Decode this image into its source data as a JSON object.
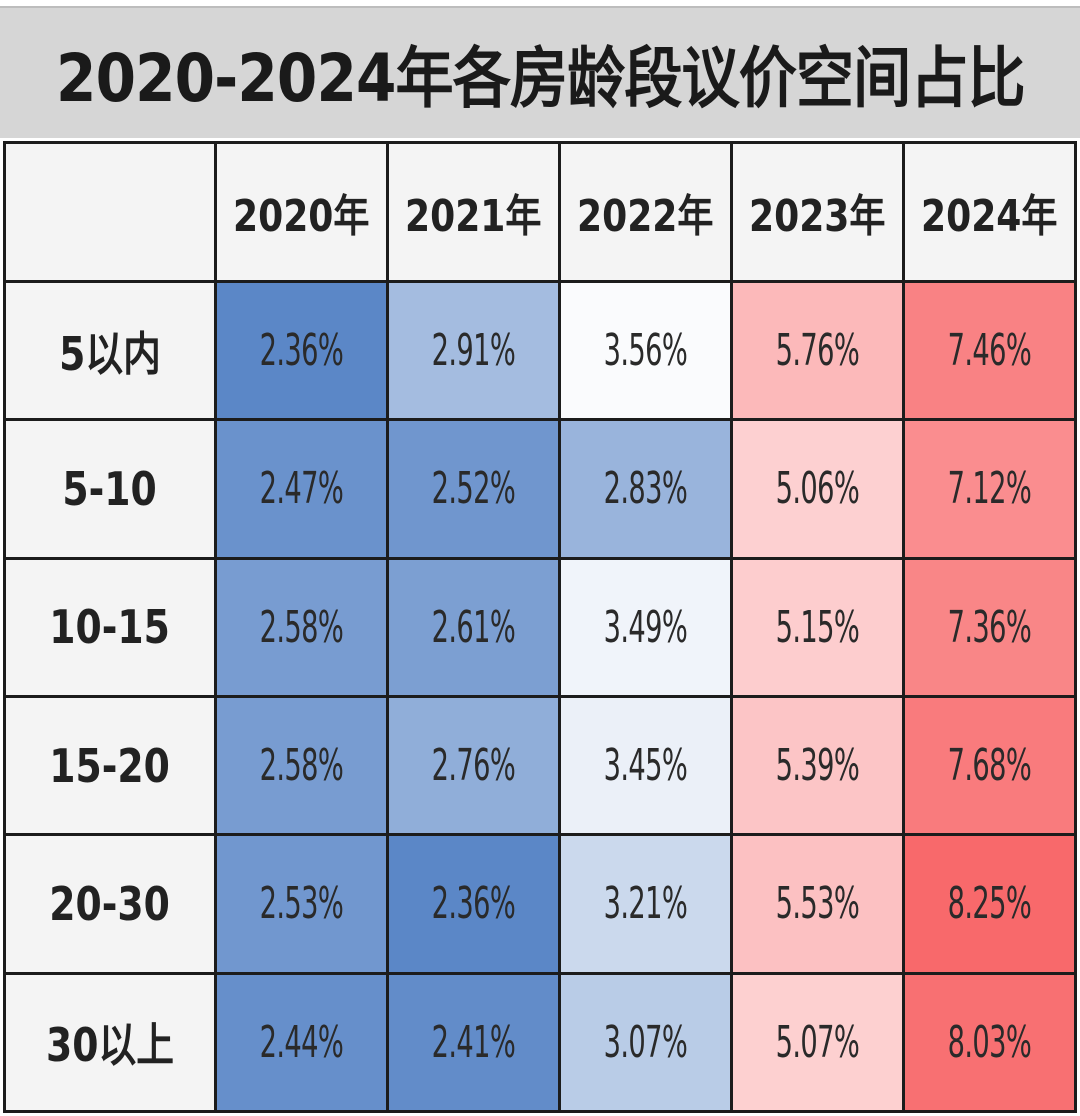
{
  "chart_data": {
    "type": "heatmap",
    "title": "2020-2024年各房龄段议价空间占比",
    "columns": [
      "2020年",
      "2021年",
      "2022年",
      "2023年",
      "2024年"
    ],
    "rows": [
      "5以内",
      "5-10",
      "10-15",
      "15-20",
      "20-30",
      "30以上"
    ],
    "values": [
      [
        2.36,
        2.91,
        3.56,
        5.76,
        7.46
      ],
      [
        2.47,
        2.52,
        2.83,
        5.06,
        7.12
      ],
      [
        2.58,
        2.61,
        3.49,
        5.15,
        7.36
      ],
      [
        2.58,
        2.76,
        3.45,
        5.39,
        7.68
      ],
      [
        2.53,
        2.36,
        3.21,
        5.53,
        8.25
      ],
      [
        2.44,
        2.41,
        3.07,
        5.07,
        8.03
      ]
    ],
    "labels": [
      [
        "2.36%",
        "2.91%",
        "3.56%",
        "5.76%",
        "7.46%"
      ],
      [
        "2.47%",
        "2.52%",
        "2.83%",
        "5.06%",
        "7.12%"
      ],
      [
        "2.58%",
        "2.61%",
        "3.49%",
        "5.15%",
        "7.36%"
      ],
      [
        "2.58%",
        "2.76%",
        "3.45%",
        "5.39%",
        "7.68%"
      ],
      [
        "2.53%",
        "2.36%",
        "3.21%",
        "5.53%",
        "8.25%"
      ],
      [
        "2.44%",
        "2.41%",
        "3.07%",
        "5.07%",
        "8.03%"
      ]
    ],
    "color_scale": {
      "low": "#5b87c7",
      "mid": "#ffffff",
      "high": "#f8696b",
      "mid_value": 3.6
    }
  }
}
